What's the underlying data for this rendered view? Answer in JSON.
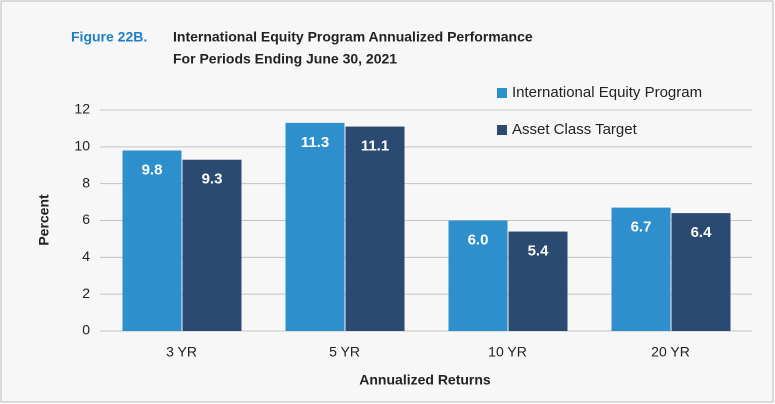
{
  "chart_data": {
    "type": "bar",
    "figure_label": "Figure 22B.",
    "title": "International Equity Program Annualized Performance",
    "subtitle": "For Periods Ending June 30, 2021",
    "xlabel": "Annualized Returns",
    "ylabel": "Percent",
    "categories": [
      "3 YR",
      "5 YR",
      "10 YR",
      "20 YR"
    ],
    "series": [
      {
        "name": "International Equity Program",
        "color": "#2e8fcd",
        "values": [
          9.8,
          11.3,
          6,
          6.7
        ],
        "value_labels": [
          "9.8",
          "11.3",
          "6.0",
          "6.7"
        ]
      },
      {
        "name": "Asset Class Target",
        "color": "#2a4a72",
        "values": [
          9.3,
          11.1,
          5.4,
          6.4
        ],
        "value_labels": [
          "9.3",
          "11.1",
          "5.4",
          "6.4"
        ]
      }
    ],
    "ylim": [
      0,
      12
    ],
    "yticks": [
      0,
      2,
      4,
      6,
      8,
      10,
      12
    ],
    "grid": true,
    "legend": "top-right"
  }
}
